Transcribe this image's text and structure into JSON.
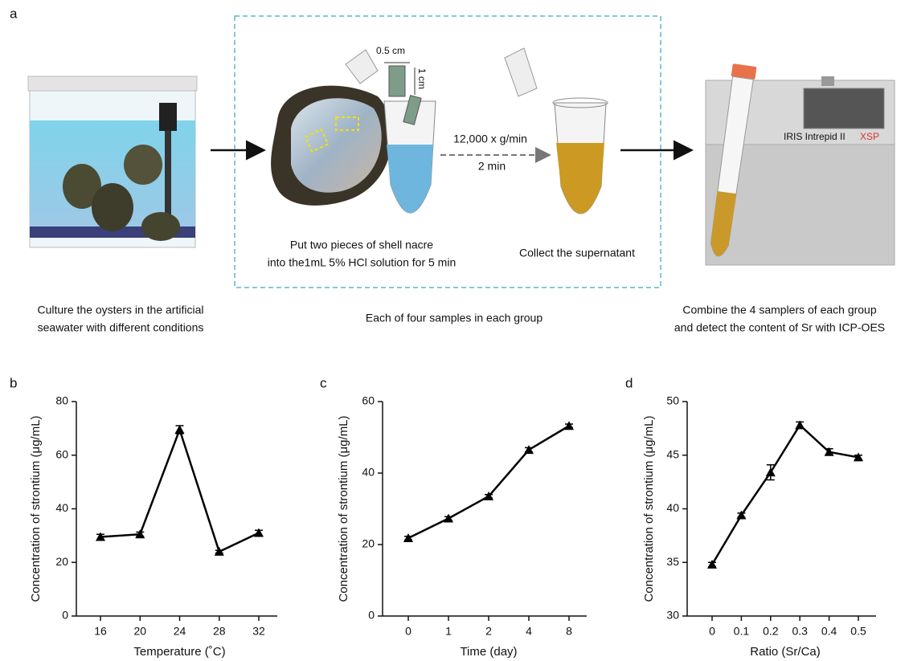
{
  "panel_labels": [
    "a",
    "b",
    "c",
    "d"
  ],
  "diagram": {
    "culture": [
      "Culture the oysters in the artificial",
      "seawater with different conditions"
    ],
    "dissolve": [
      "Put two pieces of shell nacre",
      "into the1mL 5% HCl solution for 5 min"
    ],
    "collect": "Collect the supernatant",
    "group_note": "Each of four samples in each group",
    "detect": [
      "Combine the 4 samplers of each group",
      "and detect the content of Sr with ICP-OES"
    ],
    "centrifuge_speed": "12,000 x g/min",
    "centrifuge_time": "2 min",
    "piece_width": "0.5 cm",
    "piece_length": "1 cm",
    "instrument": "IRIS Intrepid II",
    "instrument_model": "XSP"
  },
  "chart_data": [
    {
      "type": "line",
      "x_label": "Temperature (˚C)",
      "y_label": "Concentration of strontium (μg/mL)",
      "categories": [
        "16",
        "20",
        "24",
        "28",
        "32"
      ],
      "values": [
        29.5,
        30.5,
        69.5,
        24,
        31
      ],
      "errors": [
        1,
        0.8,
        1.5,
        0.5,
        1
      ],
      "color": "#000000",
      "marker": "triangle",
      "ylim": [
        0,
        80
      ],
      "yticks": [
        0,
        20,
        40,
        60,
        80
      ]
    },
    {
      "type": "line",
      "x_label": "Time (day)",
      "y_label": "Concentration of strontium (μg/mL)",
      "categories": [
        "0",
        "1",
        "2",
        "4",
        "8"
      ],
      "values": [
        21.8,
        27.3,
        33.5,
        46.5,
        53.2
      ],
      "errors": [
        0.5,
        0.5,
        0.5,
        0.6,
        0.5
      ],
      "color": "#000000",
      "marker": "triangle",
      "ylim": [
        0,
        60
      ],
      "yticks": [
        0,
        20,
        40,
        60
      ]
    },
    {
      "type": "line",
      "x_label": "Ratio (Sr/Ca)",
      "y_label": "Concentration of strontium (μg/mL)",
      "categories": [
        "0",
        "0.1",
        "0.2",
        "0.3",
        "0.4",
        "0.5"
      ],
      "values": [
        34.8,
        39.4,
        43.4,
        47.8,
        45.3,
        44.8
      ],
      "errors": [
        0.2,
        0.2,
        0.7,
        0.3,
        0.3,
        0.2
      ],
      "color": "#000000",
      "marker": "triangle",
      "ylim": [
        30,
        50
      ],
      "yticks": [
        30,
        35,
        40,
        45,
        50
      ]
    }
  ]
}
